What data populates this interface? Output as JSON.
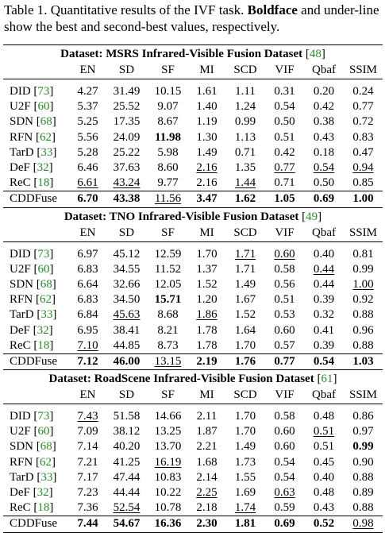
{
  "caption": {
    "pre": "Table 1. Quantitative results of the IVF task. ",
    "bold": "Boldface",
    "post": " and under-line show the best and second-best values, respectively."
  },
  "columns": [
    "EN",
    "SD",
    "SF",
    "MI",
    "SCD",
    "VIF",
    "Qbaf",
    "SSIM"
  ],
  "sections": [
    {
      "title": "Dataset: MSRS Infrared-Visible Fusion Dataset",
      "cite": "48",
      "rows": [
        {
          "method": "DID",
          "cite": "73",
          "values": [
            "4.27",
            "31.49",
            "10.15",
            "1.61",
            "1.11",
            "0.31",
            "0.20",
            "0.24"
          ],
          "fmt": [
            "",
            "",
            "",
            "",
            "",
            "",
            "",
            ""
          ]
        },
        {
          "method": "U2F",
          "cite": "60",
          "values": [
            "5.37",
            "25.52",
            "9.07",
            "1.40",
            "1.24",
            "0.54",
            "0.42",
            "0.77"
          ],
          "fmt": [
            "",
            "",
            "",
            "",
            "",
            "",
            "",
            ""
          ]
        },
        {
          "method": "SDN",
          "cite": "68",
          "values": [
            "5.25",
            "17.35",
            "8.67",
            "1.19",
            "0.99",
            "0.50",
            "0.38",
            "0.72"
          ],
          "fmt": [
            "",
            "",
            "",
            "",
            "",
            "",
            "",
            ""
          ]
        },
        {
          "method": "RFN",
          "cite": "62",
          "values": [
            "5.56",
            "24.09",
            "11.98",
            "1.30",
            "1.13",
            "0.51",
            "0.43",
            "0.83"
          ],
          "fmt": [
            "",
            "",
            "b",
            "",
            "",
            "",
            "",
            ""
          ]
        },
        {
          "method": "TarD",
          "cite": "33",
          "values": [
            "5.28",
            "25.22",
            "5.98",
            "1.49",
            "0.71",
            "0.42",
            "0.18",
            "0.47"
          ],
          "fmt": [
            "",
            "",
            "",
            "",
            "",
            "",
            "",
            ""
          ]
        },
        {
          "method": "DeF",
          "cite": "32",
          "values": [
            "6.46",
            "37.63",
            "8.60",
            "2.16",
            "1.35",
            "0.77",
            "0.54",
            "0.94"
          ],
          "fmt": [
            "",
            "",
            "",
            "u",
            "",
            "u",
            "u",
            "u"
          ]
        },
        {
          "method": "ReC",
          "cite": "18",
          "values": [
            "6.61",
            "43.24",
            "9.77",
            "2.16",
            "1.44",
            "0.71",
            "0.50",
            "0.85"
          ],
          "fmt": [
            "u",
            "u",
            "",
            "",
            "u",
            "",
            "",
            ""
          ]
        },
        {
          "method": "CDDFuse",
          "cite": "",
          "values": [
            "6.70",
            "43.38",
            "11.56",
            "3.47",
            "1.62",
            "1.05",
            "0.69",
            "1.00"
          ],
          "fmt": [
            "b",
            "b",
            "u",
            "b",
            "b",
            "b",
            "b",
            "b"
          ]
        }
      ]
    },
    {
      "title": "Dataset: TNO Infrared-Visible Fusion Dataset",
      "cite": "49",
      "rows": [
        {
          "method": "DID",
          "cite": "73",
          "values": [
            "6.97",
            "45.12",
            "12.59",
            "1.70",
            "1.71",
            "0.60",
            "0.40",
            "0.81"
          ],
          "fmt": [
            "",
            "",
            "",
            "",
            "u",
            "u",
            "",
            ""
          ]
        },
        {
          "method": "U2F",
          "cite": "60",
          "values": [
            "6.83",
            "34.55",
            "11.52",
            "1.37",
            "1.71",
            "0.58",
            "0.44",
            "0.99"
          ],
          "fmt": [
            "",
            "",
            "",
            "",
            "",
            "",
            "u",
            ""
          ]
        },
        {
          "method": "SDN",
          "cite": "68",
          "values": [
            "6.64",
            "32.66",
            "12.05",
            "1.52",
            "1.49",
            "0.56",
            "0.44",
            "1.00"
          ],
          "fmt": [
            "",
            "",
            "",
            "",
            "",
            "",
            "",
            "u"
          ]
        },
        {
          "method": "RFN",
          "cite": "62",
          "values": [
            "6.83",
            "34.50",
            "15.71",
            "1.20",
            "1.67",
            "0.51",
            "0.39",
            "0.92"
          ],
          "fmt": [
            "",
            "",
            "b",
            "",
            "",
            "",
            "",
            ""
          ]
        },
        {
          "method": "TarD",
          "cite": "33",
          "values": [
            "6.84",
            "45.63",
            "8.68",
            "1.86",
            "1.52",
            "0.53",
            "0.32",
            "0.88"
          ],
          "fmt": [
            "",
            "u",
            "",
            "u",
            "",
            "",
            "",
            ""
          ]
        },
        {
          "method": "DeF",
          "cite": "32",
          "values": [
            "6.95",
            "38.41",
            "8.21",
            "1.78",
            "1.64",
            "0.60",
            "0.41",
            "0.96"
          ],
          "fmt": [
            "",
            "",
            "",
            "",
            "",
            "",
            "",
            ""
          ]
        },
        {
          "method": "ReC",
          "cite": "18",
          "values": [
            "7.10",
            "44.85",
            "8.73",
            "1.78",
            "1.70",
            "0.57",
            "0.39",
            "0.88"
          ],
          "fmt": [
            "u",
            "",
            "",
            "",
            "",
            "",
            "",
            ""
          ]
        },
        {
          "method": "CDDFuse",
          "cite": "",
          "values": [
            "7.12",
            "46.00",
            "13.15",
            "2.19",
            "1.76",
            "0.77",
            "0.54",
            "1.03"
          ],
          "fmt": [
            "b",
            "b",
            "u",
            "b",
            "b",
            "b",
            "b",
            "b"
          ]
        }
      ]
    },
    {
      "title": "Dataset: RoadScene Infrared-Visible Fusion Dataset",
      "cite": "61",
      "rows": [
        {
          "method": "DID",
          "cite": "73",
          "values": [
            "7.43",
            "51.58",
            "14.66",
            "2.11",
            "1.70",
            "0.58",
            "0.48",
            "0.86"
          ],
          "fmt": [
            "u",
            "",
            "",
            "",
            "",
            "",
            "",
            ""
          ]
        },
        {
          "method": "U2F",
          "cite": "60",
          "values": [
            "7.09",
            "38.12",
            "13.25",
            "1.87",
            "1.70",
            "0.60",
            "0.51",
            "0.97"
          ],
          "fmt": [
            "",
            "",
            "",
            "",
            "",
            "",
            "u",
            ""
          ]
        },
        {
          "method": "SDN",
          "cite": "68",
          "values": [
            "7.14",
            "40.20",
            "13.70",
            "2.21",
            "1.49",
            "0.60",
            "0.51",
            "0.99"
          ],
          "fmt": [
            "",
            "",
            "",
            "",
            "",
            "",
            "",
            "b"
          ]
        },
        {
          "method": "RFN",
          "cite": "62",
          "values": [
            "7.21",
            "41.25",
            "16.19",
            "1.68",
            "1.73",
            "0.54",
            "0.45",
            "0.90"
          ],
          "fmt": [
            "",
            "",
            "u",
            "",
            "",
            "",
            "",
            ""
          ]
        },
        {
          "method": "TarD",
          "cite": "33",
          "values": [
            "7.17",
            "47.44",
            "10.83",
            "2.14",
            "1.55",
            "0.54",
            "0.40",
            "0.88"
          ],
          "fmt": [
            "",
            "",
            "",
            "",
            "",
            "",
            "",
            ""
          ]
        },
        {
          "method": "DeF",
          "cite": "32",
          "values": [
            "7.23",
            "44.44",
            "10.22",
            "2.25",
            "1.69",
            "0.63",
            "0.48",
            "0.89"
          ],
          "fmt": [
            "",
            "",
            "",
            "u",
            "",
            "u",
            "",
            ""
          ]
        },
        {
          "method": "ReC",
          "cite": "18",
          "values": [
            "7.36",
            "52.54",
            "10.78",
            "2.18",
            "1.74",
            "0.59",
            "0.43",
            "0.88"
          ],
          "fmt": [
            "",
            "u",
            "",
            "",
            "u",
            "",
            "",
            ""
          ]
        },
        {
          "method": "CDDFuse",
          "cite": "",
          "values": [
            "7.44",
            "54.67",
            "16.36",
            "2.30",
            "1.81",
            "0.69",
            "0.52",
            "0.98"
          ],
          "fmt": [
            "b",
            "b",
            "b",
            "b",
            "b",
            "b",
            "b",
            "u"
          ]
        }
      ]
    }
  ]
}
